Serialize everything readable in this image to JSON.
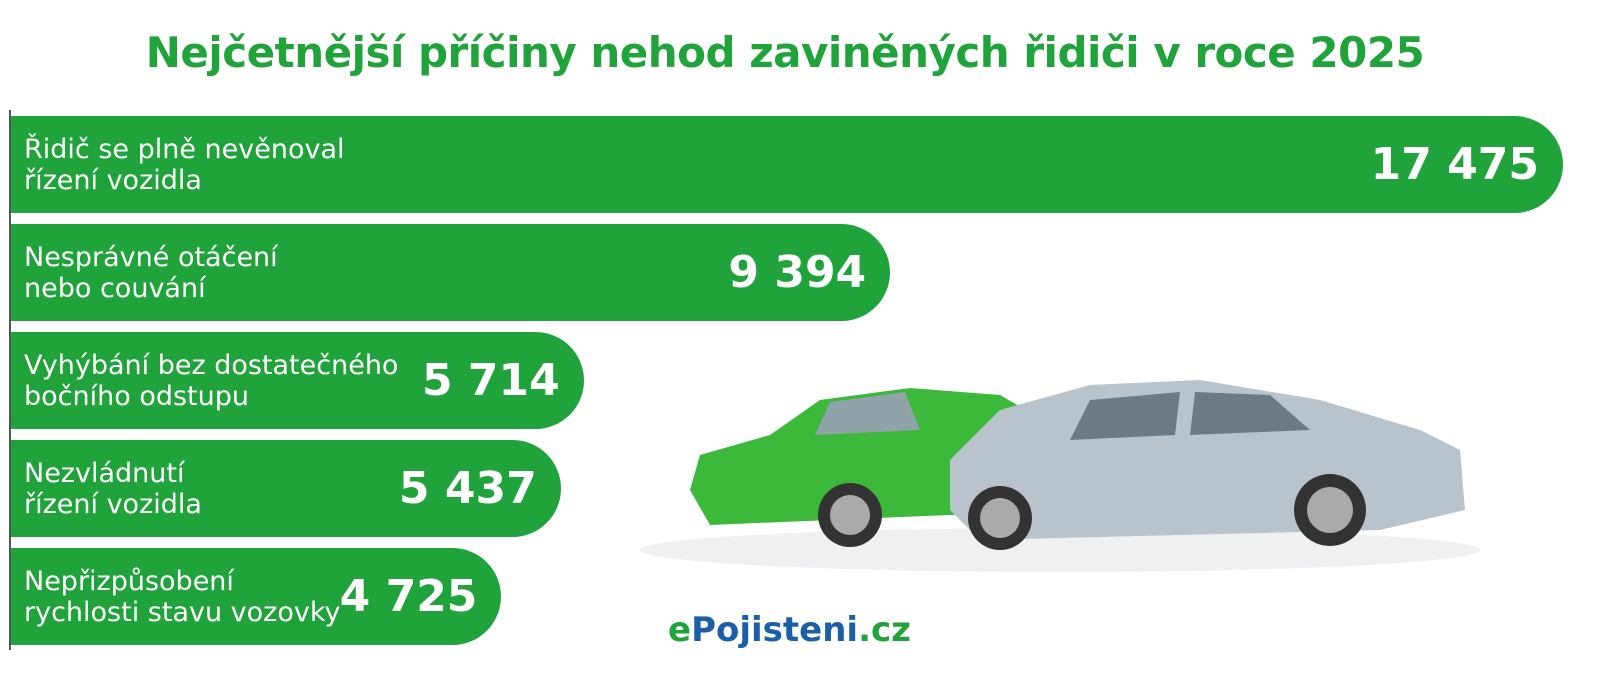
{
  "chart_data": {
    "type": "bar",
    "orientation": "horizontal",
    "title": "Nejčetnější příčiny nehod zaviněných řidiči v roce 2025",
    "categories": [
      "Řidič se plně nevěnoval\nřízení vozidla",
      "Nesprávné otáčení\nnebo couvání",
      "Vyhýbání bez dostatečného\nbočního odstupu",
      "Nezvládnutí\nřízení vozidla",
      "Nepřizpůsobení\nrychlosti stavu vozovky"
    ],
    "values": [
      17475,
      9394,
      5714,
      5437,
      4725
    ],
    "value_labels": [
      "17 475",
      "9 394",
      "5 714",
      "5 437",
      "4 725"
    ],
    "color": "#1fa33a"
  },
  "logo": {
    "prefix": "e",
    "name": "Pojisteni",
    "suffix": ".cz"
  }
}
